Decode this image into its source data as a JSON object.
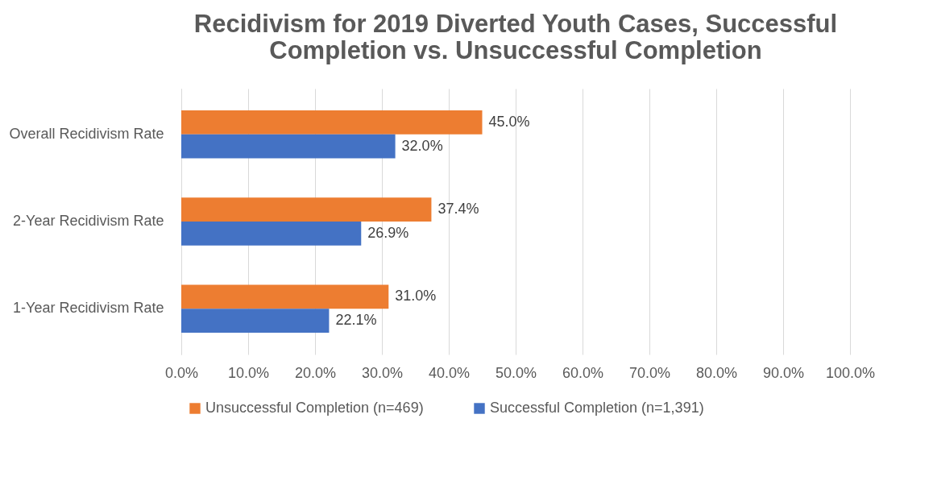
{
  "chart_data": {
    "type": "bar",
    "orientation": "horizontal",
    "title": [
      "Recidivism for 2019 Diverted Youth Cases, Successful",
      "Completion vs. Unsuccessful Completion"
    ],
    "categories": [
      "Overall Recidivism Rate",
      "2-Year Recidivism Rate",
      "1-Year Recidivism Rate"
    ],
    "series": [
      {
        "name": "Unsuccessful Completion (n=469)",
        "color": "#ed7d31",
        "values": [
          45.0,
          37.4,
          31.0
        ],
        "value_labels": [
          "45.0%",
          "37.4%",
          "31.0%"
        ]
      },
      {
        "name": "Successful Completion (n=1,391)",
        "color": "#4472c4",
        "values": [
          32.0,
          26.9,
          22.1
        ],
        "value_labels": [
          "32.0%",
          "26.9%",
          "22.1%"
        ]
      }
    ],
    "xlim": [
      0,
      100
    ],
    "xticks": [
      {
        "value": 0,
        "label": "0.0%"
      },
      {
        "value": 10,
        "label": "10.0%"
      },
      {
        "value": 20,
        "label": "20.0%"
      },
      {
        "value": 30,
        "label": "30.0%"
      },
      {
        "value": 40,
        "label": "40.0%"
      },
      {
        "value": 50,
        "label": "50.0%"
      },
      {
        "value": 60,
        "label": "60.0%"
      },
      {
        "value": 70,
        "label": "70.0%"
      },
      {
        "value": 80,
        "label": "80.0%"
      },
      {
        "value": 90,
        "label": "90.0%"
      },
      {
        "value": 100,
        "label": "100.0%"
      }
    ],
    "grid": "x",
    "legend": "bottom"
  }
}
